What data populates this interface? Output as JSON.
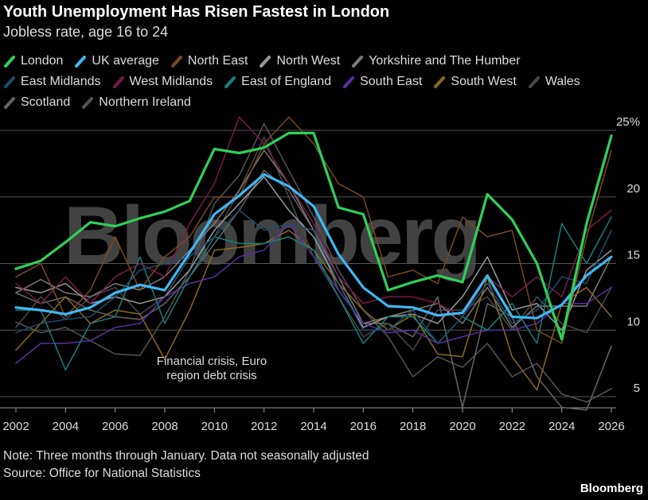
{
  "header": {
    "title": "Youth Unemployment Has Risen Fastest in London",
    "subtitle": "Jobless rate, age 16 to 24"
  },
  "annotation": {
    "line1": "Financial crisis, Euro",
    "line2": "region debt crisis"
  },
  "footer": {
    "note": "Note: Three months through January. Data not seasonally adjusted",
    "source": "Source: Office for National Statistics",
    "brand": "Bloomberg"
  },
  "watermark": "Bloomberg",
  "chart_data": {
    "type": "line",
    "title": "Youth Unemployment Has Risen Fastest in London",
    "subtitle": "Jobless rate, age 16 to 24",
    "xlim": [
      2002,
      2026
    ],
    "ylim": [
      5,
      25
    ],
    "x_ticks": [
      "2002",
      "2004",
      "2006",
      "2008",
      "2010",
      "2012",
      "2014",
      "2016",
      "2018",
      "2020",
      "2022",
      "2024",
      "2026"
    ],
    "y_ticks": [
      {
        "value": 5,
        "label": "5"
      },
      {
        "value": 10,
        "label": "10"
      },
      {
        "value": 15,
        "label": "15"
      },
      {
        "value": 20,
        "label": "20"
      },
      {
        "value": 25,
        "label": "25%"
      }
    ],
    "grid": "horizontal",
    "legend_position": "top",
    "x": [
      2002,
      2003,
      2004,
      2005,
      2006,
      2007,
      2008,
      2009,
      2010,
      2011,
      2012,
      2013,
      2014,
      2015,
      2016,
      2017,
      2018,
      2019,
      2020,
      2021,
      2022,
      2023,
      2024,
      2025,
      2026
    ],
    "series": [
      {
        "name": "Northern Ireland",
        "color": "#555555",
        "width": 1.5,
        "values": [
          10.6,
          9.8,
          10.2,
          9.2,
          8.2,
          8.1,
          11.0,
          14.5,
          19.5,
          21.6,
          25.5,
          22.0,
          18.5,
          14.5,
          11.5,
          9.5,
          6.5,
          8.0,
          7.2,
          9.0,
          6.5,
          7.5,
          5.2,
          4.6,
          5.6
        ]
      },
      {
        "name": "Scotland",
        "color": "#666666",
        "width": 1.5,
        "values": [
          12.8,
          12.0,
          12.5,
          11.5,
          11.0,
          10.8,
          12.0,
          14.0,
          16.5,
          19.0,
          22.0,
          20.5,
          17.5,
          13.0,
          10.5,
          10.5,
          9.5,
          12.5,
          4.2,
          12.0,
          11.0,
          6.5,
          4.2,
          4.0,
          8.8
        ]
      },
      {
        "name": "Wales",
        "color": "#4a4a4a",
        "width": 1.5,
        "values": [
          10.2,
          12.5,
          10.8,
          12.5,
          13.2,
          11.2,
          12.5,
          15.5,
          17.0,
          20.5,
          24.5,
          20.0,
          15.5,
          12.5,
          9.5,
          10.5,
          8.5,
          11.5,
          11.5,
          12.5,
          10.0,
          12.5,
          10.5,
          9.8,
          13.2
        ]
      },
      {
        "name": "Yorkshire and The Humber",
        "color": "#7a7a7a",
        "width": 1.5,
        "values": [
          12.8,
          13.8,
          12.8,
          12.5,
          13.5,
          13.0,
          14.0,
          16.0,
          18.0,
          20.5,
          23.5,
          21.0,
          17.5,
          14.0,
          10.5,
          11.0,
          11.5,
          12.0,
          10.5,
          13.2,
          10.2,
          11.8,
          11.8,
          11.8,
          15.5
        ]
      },
      {
        "name": "North West",
        "color": "#9a9a9a",
        "width": 1.5,
        "values": [
          13.2,
          12.8,
          13.5,
          12.0,
          12.5,
          12.0,
          12.5,
          14.5,
          17.5,
          19.5,
          21.5,
          19.0,
          17.0,
          13.5,
          10.2,
          11.0,
          11.2,
          10.5,
          12.5,
          15.5,
          11.5,
          12.0,
          10.0,
          14.5,
          16.0
        ]
      },
      {
        "name": "South West",
        "color": "#8c6a1c",
        "width": 1.5,
        "values": [
          8.5,
          10.5,
          12.5,
          10.5,
          11.5,
          11.2,
          7.8,
          11.5,
          16.0,
          16.2,
          16.5,
          17.5,
          16.0,
          13.5,
          11.5,
          10.0,
          11.2,
          8.2,
          8.0,
          14.0,
          8.0,
          5.5,
          12.0,
          13.2,
          11.0
        ]
      },
      {
        "name": "South East",
        "color": "#5b2ea0",
        "width": 1.5,
        "values": [
          7.5,
          9.0,
          9.0,
          9.2,
          10.2,
          10.5,
          12.5,
          13.5,
          14.0,
          15.5,
          16.0,
          18.0,
          15.5,
          13.0,
          10.5,
          9.8,
          10.0,
          9.0,
          9.5,
          10.0,
          10.0,
          10.5,
          12.0,
          12.0,
          13.2
        ]
      },
      {
        "name": "East of England",
        "color": "#16807f",
        "width": 1.5,
        "values": [
          11.5,
          11.5,
          7.0,
          10.5,
          11.0,
          15.5,
          10.5,
          14.0,
          17.0,
          16.5,
          16.5,
          17.0,
          16.0,
          12.5,
          9.0,
          11.0,
          11.0,
          9.0,
          11.0,
          10.0,
          12.0,
          9.0,
          18.0,
          15.0,
          18.5
        ]
      },
      {
        "name": "West Midlands",
        "color": "#7a1a4a",
        "width": 1.5,
        "values": [
          13.5,
          12.0,
          14.0,
          12.0,
          14.0,
          15.0,
          14.0,
          18.0,
          21.0,
          26.0,
          24.0,
          21.0,
          18.0,
          14.0,
          12.0,
          12.5,
          12.5,
          12.0,
          11.0,
          14.0,
          12.5,
          14.0,
          12.5,
          17.5,
          19.0
        ]
      },
      {
        "name": "East Midlands",
        "color": "#1a4f6e",
        "width": 1.5,
        "values": [
          9.8,
          10.5,
          10.8,
          11.0,
          12.5,
          14.5,
          15.0,
          15.5,
          17.0,
          19.0,
          17.5,
          18.0,
          17.5,
          13.5,
          10.0,
          10.0,
          11.5,
          9.0,
          11.0,
          13.5,
          10.5,
          11.5,
          14.0,
          13.5,
          17.5
        ]
      },
      {
        "name": "North East",
        "color": "#7a4a1e",
        "width": 1.5,
        "values": [
          14.0,
          15.0,
          11.0,
          13.0,
          17.0,
          13.0,
          15.5,
          17.0,
          20.0,
          20.0,
          24.0,
          26.0,
          24.0,
          21.0,
          20.0,
          14.0,
          14.5,
          13.5,
          18.5,
          17.0,
          17.5,
          10.0,
          9.0,
          17.0,
          23.5
        ]
      },
      {
        "name": "UK average",
        "color": "#3fb7f2",
        "width": 3.2,
        "values": [
          11.7,
          11.5,
          11.2,
          11.7,
          12.8,
          13.4,
          13.0,
          15.8,
          18.7,
          20.1,
          21.7,
          20.8,
          19.3,
          15.7,
          13.2,
          11.8,
          11.7,
          11.1,
          11.3,
          14.1,
          11.0,
          10.9,
          11.9,
          14.1,
          15.5
        ]
      },
      {
        "name": "London",
        "color": "#2ed159",
        "width": 3.2,
        "values": [
          14.6,
          15.2,
          16.6,
          18.1,
          17.8,
          18.4,
          18.9,
          19.7,
          23.6,
          23.3,
          23.7,
          24.8,
          24.8,
          19.2,
          18.7,
          13.0,
          13.6,
          14.1,
          13.6,
          20.2,
          18.3,
          15.0,
          9.3,
          18.0,
          24.6
        ]
      }
    ],
    "legend_order": [
      "London",
      "UK average",
      "North East",
      "North West",
      "Yorkshire and The Humber",
      "East Midlands",
      "West Midlands",
      "East of England",
      "South East",
      "South West",
      "Wales",
      "Scotland",
      "Northern Ireland"
    ]
  }
}
